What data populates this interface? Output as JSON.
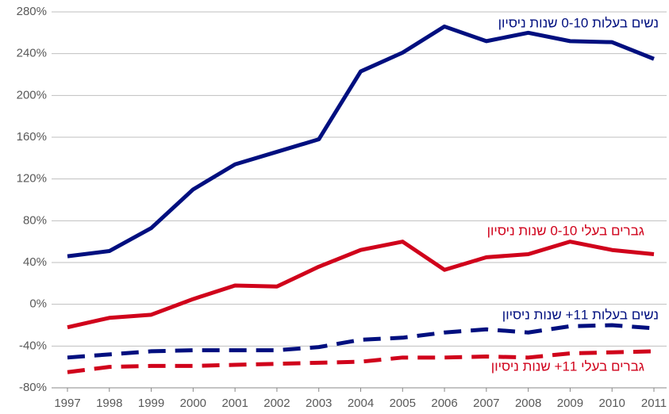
{
  "chart_data": {
    "type": "line",
    "categories": [
      "1997",
      "1998",
      "1999",
      "2000",
      "2001",
      "2002",
      "2003",
      "2004",
      "2005",
      "2006",
      "2007",
      "2008",
      "2009",
      "2010",
      "2011"
    ],
    "series": [
      {
        "name": "נשים בעלות 0-10 שנות ניסיון",
        "color": "#000f7f",
        "style": "solid",
        "values": [
          46,
          51,
          73,
          110,
          134,
          146,
          158,
          223,
          241,
          266,
          252,
          260,
          252,
          251,
          235
        ]
      },
      {
        "name": "גברים בעלי 0-10 שנות ניסיון",
        "color": "#d0021b",
        "style": "solid",
        "values": [
          -22,
          -13,
          -10,
          5,
          18,
          17,
          36,
          52,
          60,
          33,
          45,
          48,
          60,
          52,
          48
        ]
      },
      {
        "name": "נשים בעלות 11+ שנות ניסיון",
        "color": "#000f7f",
        "style": "dashed",
        "values": [
          -51,
          -48,
          -45,
          -44,
          -44,
          -44,
          -41,
          -34,
          -32,
          -27,
          -24,
          -27,
          -21,
          -20,
          -23
        ]
      },
      {
        "name": "גברים בעלי 11+ שנות ניסיון",
        "color": "#d0021b",
        "style": "dashed",
        "values": [
          -65,
          -60,
          -59,
          -59,
          -58,
          -57,
          -56,
          -55,
          -51,
          -51,
          -50,
          -51,
          -47,
          -46,
          -45
        ]
      }
    ],
    "ylim": [
      -80,
      280
    ],
    "yticks": [
      {
        "value": -80,
        "label": "-80%"
      },
      {
        "value": -40,
        "label": "-40%"
      },
      {
        "value": 0,
        "label": "0%"
      },
      {
        "value": 40,
        "label": "40%"
      },
      {
        "value": 80,
        "label": "80%"
      },
      {
        "value": 120,
        "label": "120%"
      },
      {
        "value": 160,
        "label": "160%"
      },
      {
        "value": 200,
        "label": "200%"
      },
      {
        "value": 240,
        "label": "240%"
      },
      {
        "value": 280,
        "label": "280%"
      }
    ],
    "grid": true
  }
}
